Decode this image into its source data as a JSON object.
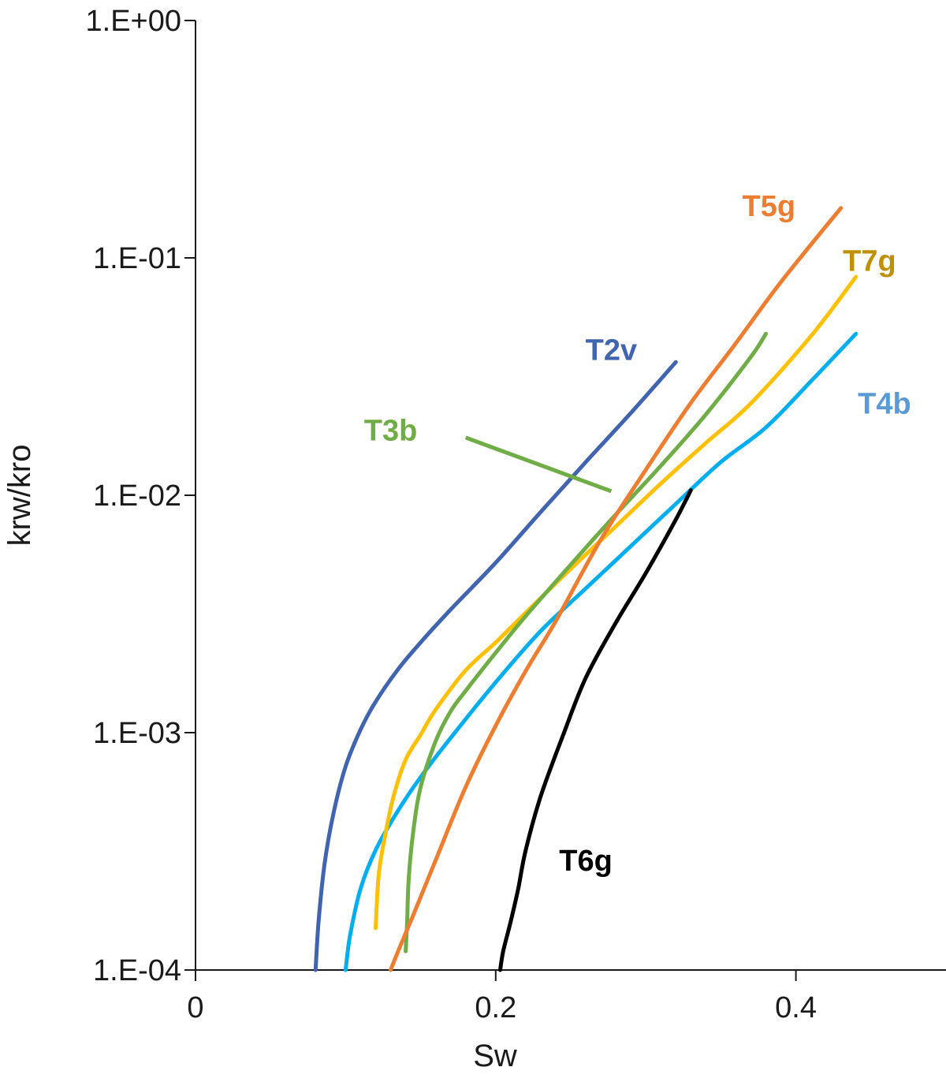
{
  "chart_data": {
    "type": "line",
    "title": "",
    "xlabel": "Sw",
    "ylabel": "krw/kro",
    "xlim": [
      0,
      0.5
    ],
    "ylim": [
      0.0001,
      1
    ],
    "yscale": "log",
    "grid": false,
    "x_ticks": [
      {
        "value": 0,
        "label": "0"
      },
      {
        "value": 0.2,
        "label": "0.2"
      },
      {
        "value": 0.4,
        "label": "0.4"
      }
    ],
    "y_ticks": [
      {
        "value": 0.0001,
        "label": "1.E-04"
      },
      {
        "value": 0.001,
        "label": "1.E-03"
      },
      {
        "value": 0.01,
        "label": "1.E-02"
      },
      {
        "value": 0.1,
        "label": "1.E-01"
      },
      {
        "value": 1,
        "label": "1.E+00"
      }
    ],
    "series": [
      {
        "name": "T2v",
        "color": "#4064AE",
        "x": [
          0.08,
          0.082,
          0.086,
          0.092,
          0.1,
          0.11,
          0.12,
          0.135,
          0.15,
          0.17,
          0.2,
          0.23,
          0.26,
          0.29,
          0.32
        ],
        "y": [
          0.0001,
          0.00016,
          0.00028,
          0.00046,
          0.00072,
          0.00103,
          0.00135,
          0.00185,
          0.0024,
          0.0033,
          0.0052,
          0.0085,
          0.0138,
          0.0222,
          0.0364
        ]
      },
      {
        "name": "T4b",
        "color": "#00AEEF",
        "x": [
          0.1,
          0.103,
          0.11,
          0.12,
          0.135,
          0.15,
          0.17,
          0.2,
          0.23,
          0.26,
          0.29,
          0.32,
          0.35,
          0.38,
          0.41,
          0.44
        ],
        "y": [
          0.0001,
          0.00014,
          0.00022,
          0.00032,
          0.00047,
          0.00065,
          0.00095,
          0.00163,
          0.00268,
          0.00405,
          0.0061,
          0.0092,
          0.0138,
          0.0193,
          0.0302,
          0.0479
        ]
      },
      {
        "name": "T7g",
        "color": "#FFC000",
        "x": [
          0.12,
          0.122,
          0.126,
          0.132,
          0.14,
          0.15,
          0.16,
          0.18,
          0.2,
          0.22,
          0.25,
          0.28,
          0.31,
          0.34,
          0.37,
          0.41,
          0.44
        ],
        "y": [
          0.00015,
          0.00025,
          0.00036,
          0.00054,
          0.00077,
          0.00098,
          0.00125,
          0.00183,
          0.0024,
          0.0032,
          0.0049,
          0.0074,
          0.0112,
          0.0166,
          0.0244,
          0.0468,
          0.0832
        ]
      },
      {
        "name": "T3b",
        "color": "#70AD47",
        "x": [
          0.14,
          0.141,
          0.142,
          0.145,
          0.15,
          0.16,
          0.17,
          0.18,
          0.2,
          0.22,
          0.25,
          0.28,
          0.31,
          0.34,
          0.37,
          0.38
        ],
        "y": [
          0.00012,
          0.00016,
          0.00024,
          0.00038,
          0.00059,
          0.00092,
          0.00123,
          0.0015,
          0.00217,
          0.0031,
          0.0051,
          0.0083,
          0.0133,
          0.0219,
          0.0383,
          0.0479
        ]
      },
      {
        "name": "T5g",
        "color": "#ED7D31",
        "x": [
          0.13,
          0.135,
          0.145,
          0.16,
          0.18,
          0.2,
          0.22,
          0.24,
          0.27,
          0.3,
          0.33,
          0.36,
          0.39,
          0.43
        ],
        "y": [
          0.0001,
          0.00012,
          0.00017,
          0.00029,
          0.00059,
          0.00107,
          0.00182,
          0.00295,
          0.0065,
          0.0128,
          0.0245,
          0.0437,
          0.0791,
          0.1622
        ]
      },
      {
        "name": "T6g",
        "color": "#000000",
        "x": [
          0.203,
          0.205,
          0.21,
          0.215,
          0.22,
          0.23,
          0.245,
          0.26,
          0.28,
          0.3,
          0.32,
          0.33
        ],
        "y": [
          0.0001,
          0.00012,
          0.00016,
          0.00022,
          0.00032,
          0.00054,
          0.00098,
          0.0017,
          0.0029,
          0.0047,
          0.0079,
          0.0105
        ]
      }
    ],
    "annotations": [
      {
        "text": "T2v",
        "color": "#4064AE",
        "x": 0.277,
        "y": 0.041
      },
      {
        "text": "T3b",
        "color": "#70AD47",
        "x": 0.13,
        "y": 0.0188
      },
      {
        "text": "T4b",
        "color": "#5B9BD5",
        "x": 0.459,
        "y": 0.0244
      },
      {
        "text": "T5g",
        "color": "#ED7D31",
        "x": 0.382,
        "y": 0.1655
      },
      {
        "text": "T7g",
        "color": "#BF9000",
        "x": 0.449,
        "y": 0.0973
      },
      {
        "text": "T6g",
        "color": "#000000",
        "x": 0.26,
        "y": 0.00029
      }
    ],
    "pointer": {
      "color": "#70AD47",
      "from": {
        "x": 0.18,
        "y": 0.0175
      },
      "to": {
        "x": 0.277,
        "y": 0.0104
      }
    }
  }
}
